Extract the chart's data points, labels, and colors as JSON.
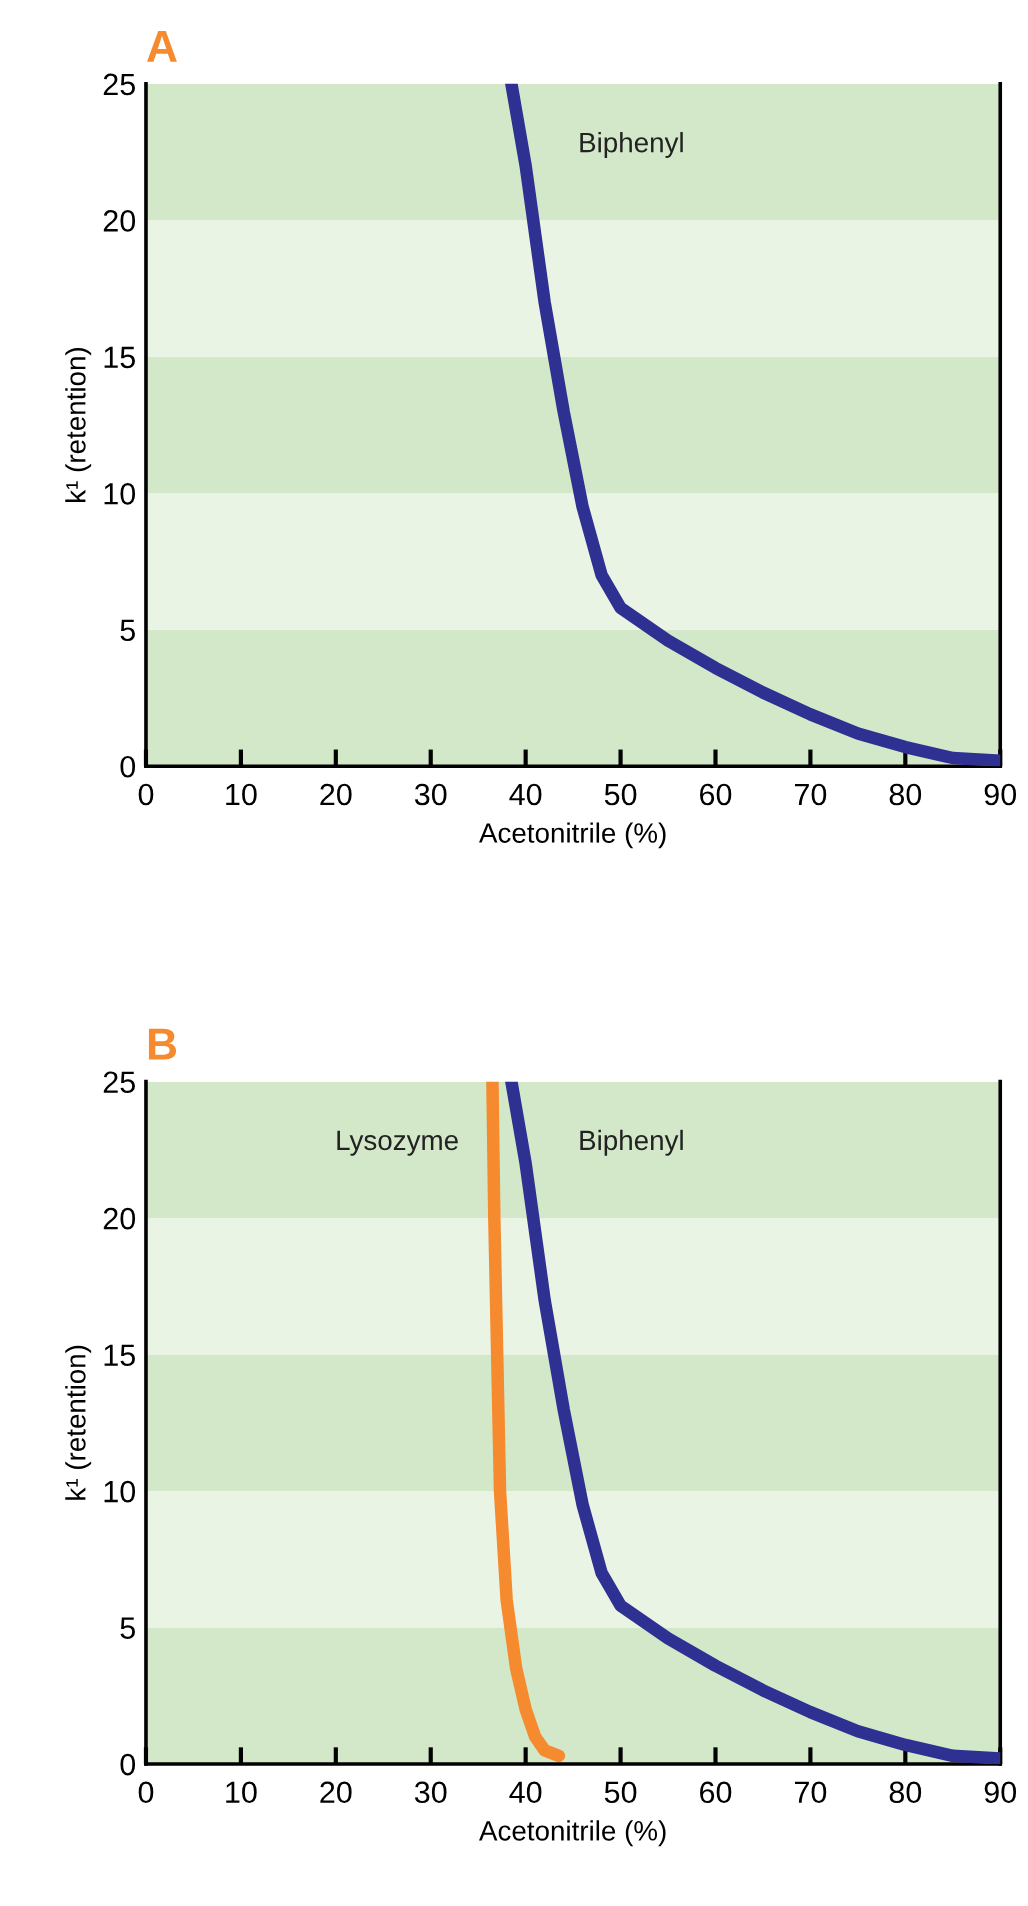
{
  "chart_data": [
    {
      "type": "line",
      "title": "A",
      "xlabel": "Acetonitrile (%)",
      "ylabel": "k¹ (retention)",
      "xlim": [
        0,
        90
      ],
      "xticks": [
        0,
        10,
        20,
        30,
        40,
        50,
        60,
        70,
        80,
        90
      ],
      "ylim": [
        0,
        25
      ],
      "yticks": [
        0,
        5,
        10,
        15,
        20,
        25
      ],
      "grid": false,
      "legend": false,
      "marker": "none",
      "line_style": "solid",
      "bands": [
        {
          "axis": "y",
          "from": 0,
          "to": 5,
          "color": "#d3e8c8"
        },
        {
          "axis": "y",
          "from": 5,
          "to": 10,
          "color": "#eaf4e4"
        },
        {
          "axis": "y",
          "from": 10,
          "to": 15,
          "color": "#d3e8c8"
        },
        {
          "axis": "y",
          "from": 15,
          "to": 20,
          "color": "#eaf4e4"
        },
        {
          "axis": "y",
          "from": 20,
          "to": 25,
          "color": "#d3e8c8"
        }
      ],
      "series": [
        {
          "name": "Biphenyl",
          "color": "#2e3192",
          "x": [
            38.5,
            40,
            42,
            44,
            46,
            48,
            50,
            55,
            60,
            65,
            70,
            75,
            80,
            85,
            90
          ],
          "values": [
            25,
            22,
            17,
            13,
            9.5,
            7,
            5.8,
            4.6,
            3.6,
            2.7,
            1.9,
            1.2,
            0.7,
            0.3,
            0.2
          ]
        }
      ]
    },
    {
      "type": "line",
      "title": "B",
      "xlabel": "Acetonitrile (%)",
      "ylabel": "k¹ (retention)",
      "xlim": [
        0,
        90
      ],
      "xticks": [
        0,
        10,
        20,
        30,
        40,
        50,
        60,
        70,
        80,
        90
      ],
      "ylim": [
        0,
        25
      ],
      "yticks": [
        0,
        5,
        10,
        15,
        20,
        25
      ],
      "grid": false,
      "legend": false,
      "marker": "none",
      "line_style": "solid",
      "bands": [
        {
          "axis": "y",
          "from": 0,
          "to": 5,
          "color": "#d3e8c8"
        },
        {
          "axis": "y",
          "from": 5,
          "to": 10,
          "color": "#eaf4e4"
        },
        {
          "axis": "y",
          "from": 10,
          "to": 15,
          "color": "#d3e8c8"
        },
        {
          "axis": "y",
          "from": 15,
          "to": 20,
          "color": "#eaf4e4"
        },
        {
          "axis": "y",
          "from": 20,
          "to": 25,
          "color": "#d3e8c8"
        }
      ],
      "series": [
        {
          "name": "Lysozyme",
          "color": "#f58a2e",
          "x": [
            36.5,
            36.7,
            37,
            37.3,
            38,
            39,
            40,
            41,
            42,
            43.5
          ],
          "values": [
            25,
            20,
            15,
            10,
            6,
            3.5,
            2,
            1,
            0.5,
            0.3
          ]
        },
        {
          "name": "Biphenyl",
          "color": "#2e3192",
          "x": [
            38.5,
            40,
            42,
            44,
            46,
            48,
            50,
            55,
            60,
            65,
            70,
            75,
            80,
            85,
            90
          ],
          "values": [
            25,
            22,
            17,
            13,
            9.5,
            7,
            5.8,
            4.6,
            3.6,
            2.7,
            1.9,
            1.2,
            0.7,
            0.3,
            0.2
          ]
        }
      ]
    }
  ]
}
